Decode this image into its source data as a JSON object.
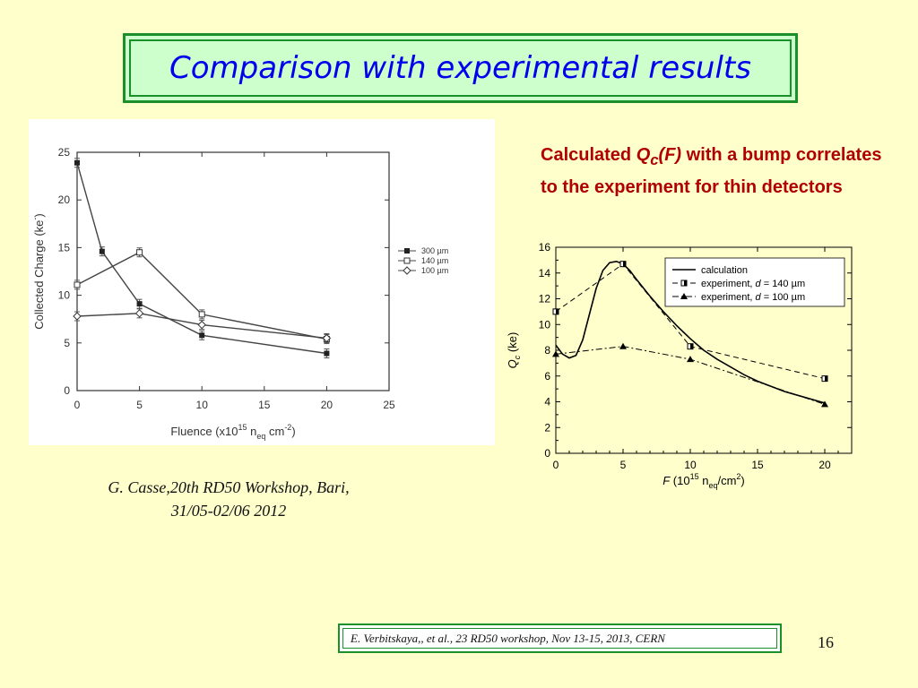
{
  "slide": {
    "title": "Comparison with experimental results",
    "description_prefix": "Calculated ",
    "description_qc": "Q",
    "description_sub": "c",
    "description_f": "(F)",
    "description_rest": " with a bump correlates to the experiment for thin detectors",
    "citation_line1": "G. Casse,20th RD50 Workshop, Bari,",
    "citation_line2": "31/05-02/06 2012",
    "reference": "E. Verbitskaya,, et  al., 23 RD50 workshop, Nov 13-15, 2013, CERN",
    "page_number": "16"
  },
  "chart_data": [
    {
      "type": "line",
      "xlabel_main": "Fluence (x10",
      "xlabel_sup": "15",
      "xlabel_mid": " n",
      "xlabel_sub": "eq",
      "xlabel_end": " cm",
      "xlabel_sup2": "-2",
      "xlabel_close": ")",
      "ylabel": "Collected Charge (ke",
      "ylabel_sup": "-",
      "ylabel_close": ")",
      "xlim": [
        0,
        25
      ],
      "ylim": [
        0,
        25
      ],
      "xticks": [
        "0",
        "5",
        "10",
        "15",
        "20",
        "25"
      ],
      "yticks": [
        "0",
        "5",
        "10",
        "15",
        "20",
        "25"
      ],
      "legend_position": "right",
      "series": [
        {
          "name": "300 µm",
          "marker": "square-filled",
          "x": [
            0,
            2,
            5,
            10,
            20
          ],
          "y": [
            23.9,
            14.6,
            9.1,
            5.8,
            3.9
          ]
        },
        {
          "name": "140 µm",
          "marker": "square-open",
          "x": [
            0,
            5,
            10,
            20
          ],
          "y": [
            11.1,
            14.5,
            8.0,
            5.4
          ]
        },
        {
          "name": "100 µm",
          "marker": "diamond-open",
          "x": [
            0,
            5,
            10,
            20
          ],
          "y": [
            7.8,
            8.1,
            6.9,
            5.5
          ]
        }
      ]
    },
    {
      "type": "line",
      "xlabel_f": "F",
      "xlabel_rest": " (10",
      "xlabel_sup": "15",
      "xlabel_n": " n",
      "xlabel_sub": "eq",
      "xlabel_unit": "/cm",
      "xlabel_sup2": "2",
      "xlabel_close": ")",
      "ylabel_q": "Q",
      "ylabel_sub": "c",
      "ylabel_rest": " (ke)",
      "xlim": [
        0,
        22
      ],
      "ylim": [
        0,
        16
      ],
      "xticks": [
        "0",
        "5",
        "10",
        "15",
        "20"
      ],
      "yticks": [
        "0",
        "2",
        "4",
        "6",
        "8",
        "10",
        "12",
        "14",
        "16"
      ],
      "legend_position": "top-right",
      "series": [
        {
          "name": "calculation",
          "style": "solid",
          "x": [
            0,
            0.5,
            1,
            1.5,
            2,
            2.5,
            3,
            3.5,
            4,
            4.5,
            5,
            5.5,
            6,
            7,
            8,
            9,
            10,
            11,
            12,
            13,
            14,
            15,
            16,
            17,
            18,
            19,
            20
          ],
          "y": [
            8.4,
            7.7,
            7.4,
            7.6,
            8.8,
            10.8,
            12.8,
            14.2,
            14.8,
            14.9,
            14.7,
            14.2,
            13.5,
            12.2,
            11.0,
            9.9,
            8.9,
            8.0,
            7.3,
            6.7,
            6.1,
            5.6,
            5.2,
            4.8,
            4.5,
            4.2,
            3.9
          ]
        },
        {
          "name": "experiment, ",
          "name_d": "d",
          "name_rest": " = 140 ",
          "name_unit": "µm",
          "style": "dashed",
          "marker": "square-half",
          "x": [
            0,
            5,
            10,
            20
          ],
          "y": [
            11.0,
            14.7,
            8.3,
            5.8
          ]
        },
        {
          "name": "experiment, ",
          "name_d": "d",
          "name_rest": " = 100 ",
          "name_unit": "µm",
          "style": "dashdot",
          "marker": "triangle-filled",
          "x": [
            0,
            5,
            10,
            20
          ],
          "y": [
            7.7,
            8.3,
            7.3,
            3.8
          ]
        }
      ]
    }
  ]
}
